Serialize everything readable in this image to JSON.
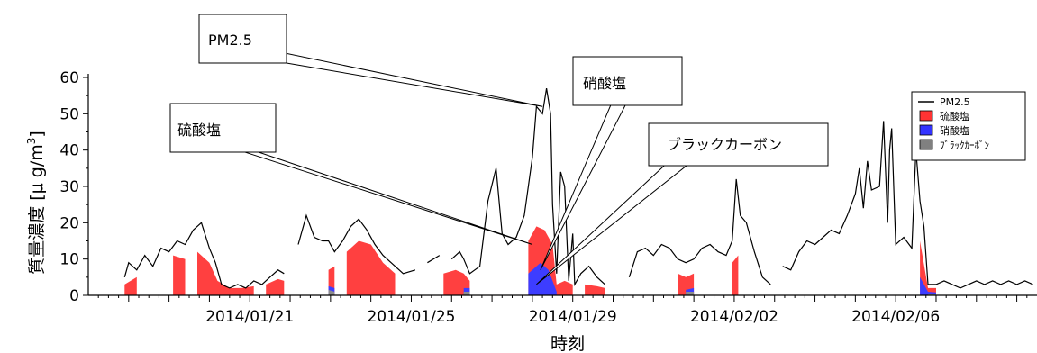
{
  "chart_data": {
    "type": "area",
    "title": "",
    "xlabel": "時刻",
    "ylabel": "質量濃度 [μ g/m",
    "ylabel_superscript": "3",
    "ylabel_close": "]",
    "xlim": [
      "2014/01/17 00:00",
      "2014/02/07 12:00"
    ],
    "ylim": [
      0,
      60
    ],
    "yticks": [
      0,
      10,
      20,
      30,
      40,
      50,
      60
    ],
    "xtick_labels": [
      "2014/01/21",
      "2014/01/25",
      "2014/01/29",
      "2014/02/02",
      "2014/02/06"
    ],
    "xtick_days": [
      4,
      8,
      12,
      16,
      20
    ],
    "grid": false,
    "legend_position": "top-right",
    "stacking": "cumulative (black carbon, + nitrate, + sulfate)",
    "x_unit": "days since 2014/01/17 00:00",
    "series": [
      {
        "name": "PM2.5",
        "kind": "line",
        "color": "#000000",
        "points": [
          [
            0.9,
            5
          ],
          [
            1.0,
            9
          ],
          [
            1.2,
            7
          ],
          [
            1.4,
            11
          ],
          [
            1.6,
            8
          ],
          [
            1.8,
            13
          ],
          [
            2.0,
            12
          ],
          [
            2.2,
            15
          ],
          [
            2.4,
            14
          ],
          [
            2.6,
            18
          ],
          [
            2.8,
            20
          ],
          [
            3.0,
            13
          ],
          [
            3.15,
            9
          ],
          [
            3.3,
            3
          ],
          [
            3.5,
            2
          ],
          [
            3.7,
            3
          ],
          [
            3.9,
            2
          ],
          [
            4.1,
            4
          ],
          [
            4.3,
            3
          ],
          [
            4.5,
            5
          ],
          [
            4.7,
            7
          ],
          [
            4.85,
            6
          ],
          [
            5.2,
            14
          ],
          [
            5.4,
            22
          ],
          [
            5.6,
            16
          ],
          [
            5.8,
            15
          ],
          [
            5.95,
            15
          ],
          [
            6.1,
            12
          ],
          [
            6.3,
            15
          ],
          [
            6.5,
            19
          ],
          [
            6.7,
            21
          ],
          [
            6.9,
            18
          ],
          [
            7.1,
            14
          ],
          [
            7.3,
            11
          ],
          [
            7.5,
            9
          ],
          [
            7.8,
            6
          ],
          [
            8.1,
            7
          ],
          [
            8.4,
            9
          ],
          [
            8.7,
            11
          ],
          [
            9.0,
            10
          ],
          [
            9.2,
            12
          ],
          [
            9.3,
            10
          ],
          [
            9.45,
            6
          ],
          [
            9.7,
            8
          ],
          [
            9.9,
            26
          ],
          [
            10.1,
            35
          ],
          [
            10.25,
            17
          ],
          [
            10.4,
            14
          ],
          [
            10.6,
            16
          ],
          [
            10.8,
            22
          ],
          [
            11.0,
            38
          ],
          [
            11.1,
            52
          ],
          [
            11.25,
            50
          ],
          [
            11.35,
            57
          ],
          [
            11.45,
            50
          ],
          [
            11.5,
            25
          ],
          [
            11.6,
            6
          ],
          [
            11.7,
            34
          ],
          [
            11.8,
            30
          ],
          [
            11.9,
            4
          ],
          [
            12.0,
            17
          ],
          [
            12.05,
            3
          ],
          [
            12.2,
            6
          ],
          [
            12.4,
            8
          ],
          [
            12.6,
            5
          ],
          [
            12.8,
            3
          ],
          [
            13.4,
            5
          ],
          [
            13.6,
            12
          ],
          [
            13.8,
            13
          ],
          [
            14.0,
            11
          ],
          [
            14.2,
            14
          ],
          [
            14.4,
            13
          ],
          [
            14.6,
            10
          ],
          [
            14.8,
            9
          ],
          [
            15.0,
            10
          ],
          [
            15.2,
            13
          ],
          [
            15.4,
            14
          ],
          [
            15.6,
            12
          ],
          [
            15.8,
            11
          ],
          [
            15.95,
            15
          ],
          [
            16.05,
            32
          ],
          [
            16.15,
            22
          ],
          [
            16.3,
            20
          ],
          [
            16.5,
            12
          ],
          [
            16.7,
            5
          ],
          [
            16.9,
            3
          ],
          [
            17.2,
            8
          ],
          [
            17.4,
            7
          ],
          [
            17.6,
            12
          ],
          [
            17.8,
            15
          ],
          [
            18.0,
            14
          ],
          [
            18.2,
            16
          ],
          [
            18.4,
            18
          ],
          [
            18.6,
            17
          ],
          [
            18.8,
            22
          ],
          [
            19.0,
            28
          ],
          [
            19.1,
            35
          ],
          [
            19.2,
            24
          ],
          [
            19.3,
            37
          ],
          [
            19.4,
            29
          ],
          [
            19.6,
            30
          ],
          [
            19.7,
            48
          ],
          [
            19.8,
            20
          ],
          [
            19.85,
            40
          ],
          [
            19.9,
            46
          ],
          [
            20.0,
            14
          ],
          [
            20.2,
            16
          ],
          [
            20.4,
            13
          ],
          [
            20.5,
            40
          ],
          [
            20.6,
            26
          ],
          [
            20.7,
            19
          ],
          [
            20.8,
            3
          ],
          [
            21.0,
            3
          ],
          [
            21.2,
            4
          ],
          [
            21.4,
            3
          ],
          [
            21.6,
            2
          ],
          [
            21.8,
            3
          ],
          [
            22.0,
            4
          ],
          [
            22.2,
            3
          ],
          [
            22.4,
            4
          ],
          [
            22.6,
            3
          ],
          [
            22.8,
            4
          ],
          [
            23.0,
            3
          ],
          [
            23.2,
            4
          ],
          [
            23.4,
            3
          ]
        ]
      },
      {
        "name": "硫酸塩",
        "kind": "area",
        "color": "#ff4040",
        "points": [
          [
            0.9,
            3
          ],
          [
            1.2,
            5
          ],
          [
            1.5,
            8
          ],
          [
            1.8,
            10
          ],
          [
            2.1,
            11
          ],
          [
            2.4,
            10
          ],
          [
            2.7,
            12
          ],
          [
            3.0,
            9
          ],
          [
            3.2,
            4
          ],
          [
            3.5,
            2
          ],
          [
            3.8,
            2
          ],
          [
            4.1,
            2.5
          ],
          [
            4.4,
            3
          ],
          [
            4.7,
            4.5
          ],
          [
            4.85,
            4
          ],
          [
            5.2,
            7
          ],
          [
            5.6,
            6
          ],
          [
            5.95,
            7
          ],
          [
            6.1,
            8
          ],
          [
            6.4,
            12
          ],
          [
            6.7,
            15
          ],
          [
            7.0,
            14
          ],
          [
            7.3,
            9
          ],
          [
            7.6,
            6
          ],
          [
            8.0,
            4
          ],
          [
            8.4,
            5
          ],
          [
            8.8,
            6
          ],
          [
            9.1,
            7
          ],
          [
            9.3,
            6
          ],
          [
            9.45,
            4
          ],
          [
            9.8,
            8
          ],
          [
            10.2,
            10
          ],
          [
            10.6,
            11
          ],
          [
            10.9,
            15
          ],
          [
            11.1,
            19
          ],
          [
            11.3,
            18
          ],
          [
            11.5,
            14
          ],
          [
            11.6,
            3
          ],
          [
            11.8,
            4
          ],
          [
            12.0,
            3
          ],
          [
            12.3,
            3
          ],
          [
            12.6,
            2.5
          ],
          [
            12.8,
            2
          ],
          [
            13.4,
            3
          ],
          [
            13.8,
            6
          ],
          [
            14.2,
            7
          ],
          [
            14.6,
            6
          ],
          [
            14.8,
            5
          ],
          [
            15.0,
            6
          ],
          [
            15.5,
            8
          ],
          [
            15.95,
            9
          ],
          [
            16.1,
            11
          ],
          [
            16.5,
            7
          ],
          [
            16.9,
            2
          ],
          [
            17.2,
            4
          ],
          [
            17.6,
            6
          ],
          [
            18.0,
            7
          ],
          [
            18.4,
            9
          ],
          [
            18.8,
            10
          ],
          [
            19.2,
            11
          ],
          [
            19.6,
            13
          ],
          [
            20.0,
            14
          ],
          [
            20.3,
            16
          ],
          [
            20.6,
            15
          ],
          [
            20.8,
            2
          ],
          [
            21.0,
            2
          ],
          [
            21.5,
            2.5
          ],
          [
            22.0,
            2
          ],
          [
            22.5,
            2.5
          ],
          [
            23.0,
            2
          ],
          [
            23.4,
            2.5
          ]
        ]
      },
      {
        "name": "硝酸塩",
        "kind": "area",
        "color": "#3d3dff",
        "points": [
          [
            0.9,
            1.5
          ],
          [
            1.5,
            3
          ],
          [
            2.0,
            3.5
          ],
          [
            2.5,
            3
          ],
          [
            3.0,
            2.5
          ],
          [
            3.5,
            1
          ],
          [
            4.0,
            1
          ],
          [
            4.5,
            1.5
          ],
          [
            4.85,
            1.5
          ],
          [
            5.2,
            2.5
          ],
          [
            5.6,
            2
          ],
          [
            5.95,
            2.5
          ],
          [
            6.1,
            2
          ],
          [
            6.6,
            3.5
          ],
          [
            7.0,
            3
          ],
          [
            7.5,
            2
          ],
          [
            8.0,
            1.5
          ],
          [
            8.6,
            2
          ],
          [
            9.3,
            2
          ],
          [
            9.45,
            2
          ],
          [
            10.0,
            3
          ],
          [
            10.5,
            4
          ],
          [
            10.9,
            6
          ],
          [
            11.2,
            9
          ],
          [
            11.4,
            7
          ],
          [
            11.6,
            1
          ],
          [
            12.0,
            1
          ],
          [
            12.8,
            0.8
          ],
          [
            13.4,
            1.2
          ],
          [
            14.0,
            2
          ],
          [
            14.8,
            1.5
          ],
          [
            15.0,
            2
          ],
          [
            15.5,
            2.5
          ],
          [
            16.0,
            4
          ],
          [
            16.3,
            3
          ],
          [
            16.9,
            1
          ],
          [
            17.2,
            1.5
          ],
          [
            17.8,
            2.5
          ],
          [
            18.5,
            3
          ],
          [
            19.2,
            4
          ],
          [
            19.8,
            5
          ],
          [
            20.3,
            6
          ],
          [
            20.6,
            5
          ],
          [
            20.8,
            1
          ],
          [
            21.0,
            0.8
          ],
          [
            22.0,
            1
          ],
          [
            23.4,
            1
          ]
        ]
      },
      {
        "name": "ブラックカーボン",
        "kind": "area",
        "color": "#8c8c8c",
        "points": [
          [
            0.9,
            0.8
          ],
          [
            1.5,
            1.5
          ],
          [
            2.5,
            2
          ],
          [
            3.0,
            1.5
          ],
          [
            3.5,
            0.5
          ],
          [
            4.5,
            1
          ],
          [
            4.85,
            1
          ],
          [
            5.2,
            1.5
          ],
          [
            5.95,
            1.5
          ],
          [
            6.1,
            1
          ],
          [
            7.0,
            1.5
          ],
          [
            8.0,
            1
          ],
          [
            9.3,
            1
          ],
          [
            9.45,
            1
          ],
          [
            10.5,
            2
          ],
          [
            11.2,
            3
          ],
          [
            11.6,
            0.5
          ],
          [
            12.8,
            0.5
          ],
          [
            13.4,
            0.8
          ],
          [
            14.8,
            1
          ],
          [
            15.0,
            1
          ],
          [
            16.0,
            2
          ],
          [
            16.9,
            0.5
          ],
          [
            17.2,
            1
          ],
          [
            18.5,
            1.5
          ],
          [
            19.5,
            2
          ],
          [
            20.3,
            2.5
          ],
          [
            20.8,
            0.5
          ],
          [
            21.0,
            0.5
          ],
          [
            23.4,
            0.6
          ]
        ]
      }
    ],
    "legend": [
      {
        "label": "PM2.5",
        "type": "line",
        "color": "#000000"
      },
      {
        "label": "硫酸塩",
        "type": "box",
        "color": "#ff3333"
      },
      {
        "label": "硝酸塩",
        "type": "box",
        "color": "#3333ff"
      },
      {
        "label": "ﾌﾞﾗｯｸｶｰﾎﾞﾝ",
        "type": "box",
        "color": "#808080"
      }
    ],
    "annotations": [
      {
        "text": "PM2.5",
        "target_day": 11.25,
        "target_value": 52
      },
      {
        "text": "硫酸塩",
        "target_day": 11.0,
        "target_value": 14
      },
      {
        "text": "硝酸塩",
        "target_day": 11.2,
        "target_value": 7
      },
      {
        "text": "ブラックカーボン",
        "target_day": 11.1,
        "target_value": 3
      }
    ]
  }
}
